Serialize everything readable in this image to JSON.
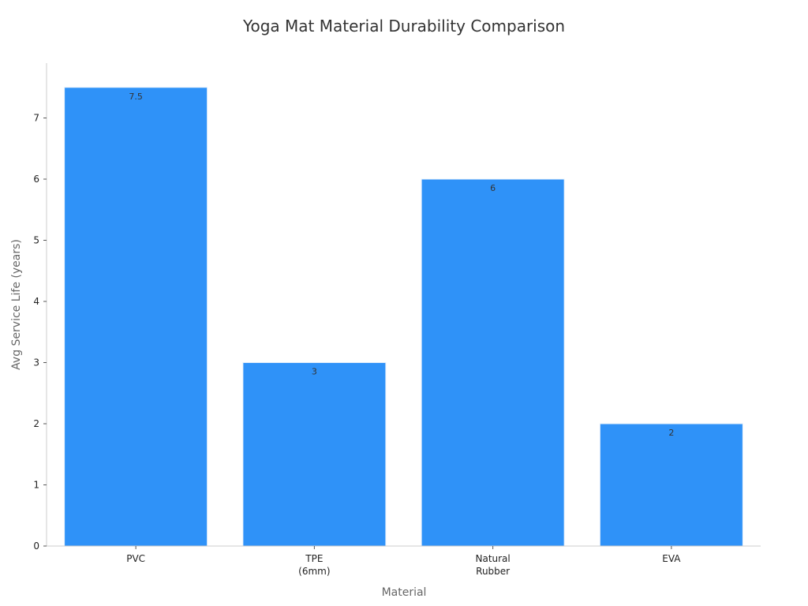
{
  "chart_data": {
    "type": "bar",
    "title": "Yoga Mat Material Durability Comparison",
    "xlabel": "Material",
    "ylabel": "Avg Service Life (years)",
    "categories": [
      [
        "PVC"
      ],
      [
        "TPE",
        "(6mm)"
      ],
      [
        "Natural",
        "Rubber"
      ],
      [
        "EVA"
      ]
    ],
    "values": [
      7.5,
      3,
      6,
      2
    ],
    "data_labels": [
      "7.5",
      "3",
      "6",
      "2"
    ],
    "yticks": [
      0,
      1,
      2,
      3,
      4,
      5,
      6,
      7
    ],
    "ylim": [
      0,
      7.9
    ],
    "grid": false,
    "legend": "none",
    "bar_color": "#2f92f8",
    "bar_edge_color": "#e6f0fb"
  }
}
